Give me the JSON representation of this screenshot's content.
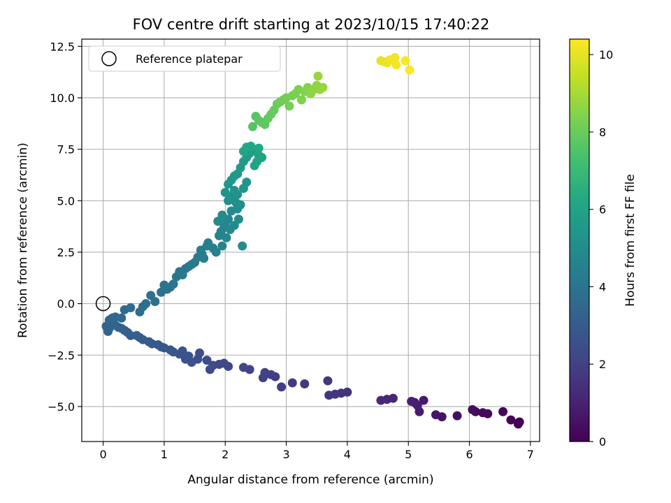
{
  "chart_data": {
    "type": "scatter",
    "title": "FOV centre drift starting at 2023/10/15 17:40:22",
    "xlabel": "Angular distance from reference (arcmin)",
    "ylabel": "Rotation from reference (arcmin)",
    "colorbar_label": "Hours from first FF file",
    "colormap": "viridis",
    "xlim": [
      -0.35,
      7.15
    ],
    "ylim": [
      -6.7,
      12.85
    ],
    "clim": [
      0,
      10.4
    ],
    "x_ticks": [
      0,
      1,
      2,
      3,
      4,
      5,
      6,
      7
    ],
    "y_ticks": [
      -5.0,
      -2.5,
      0.0,
      2.5,
      5.0,
      7.5,
      10.0,
      12.5
    ],
    "colorbar_ticks": [
      0,
      2,
      4,
      6,
      8,
      10
    ],
    "grid": true,
    "legend": {
      "placement": "top-left",
      "entries": [
        "Reference platepar"
      ]
    },
    "reference_point": {
      "x": 0,
      "y": 0
    },
    "points": [
      [
        6.82,
        -5.75,
        0.0
      ],
      [
        6.8,
        -5.85,
        0.05
      ],
      [
        6.68,
        -5.65,
        0.1
      ],
      [
        6.55,
        -5.25,
        0.15
      ],
      [
        6.3,
        -5.35,
        0.2
      ],
      [
        6.22,
        -5.3,
        0.25
      ],
      [
        6.1,
        -5.25,
        0.3
      ],
      [
        6.05,
        -5.15,
        0.35
      ],
      [
        5.8,
        -5.45,
        0.45
      ],
      [
        5.55,
        -5.5,
        0.55
      ],
      [
        5.45,
        -5.4,
        0.6
      ],
      [
        5.25,
        -4.7,
        0.75
      ],
      [
        5.18,
        -5.25,
        0.8
      ],
      [
        5.15,
        -4.95,
        0.85
      ],
      [
        5.1,
        -4.8,
        0.9
      ],
      [
        5.05,
        -4.75,
        0.95
      ],
      [
        4.75,
        -4.6,
        1.1
      ],
      [
        4.65,
        -4.65,
        1.15
      ],
      [
        4.55,
        -4.7,
        1.2
      ],
      [
        4.0,
        -4.3,
        1.45
      ],
      [
        3.9,
        -4.35,
        1.5
      ],
      [
        3.8,
        -4.4,
        1.55
      ],
      [
        3.7,
        -4.45,
        1.6
      ],
      [
        3.68,
        -3.75,
        1.62
      ],
      [
        3.3,
        -3.9,
        1.75
      ],
      [
        3.1,
        -3.85,
        1.8
      ],
      [
        2.92,
        -4.05,
        1.85
      ],
      [
        2.82,
        -3.55,
        1.9
      ],
      [
        2.75,
        -3.45,
        1.95
      ],
      [
        2.65,
        -3.35,
        2.0
      ],
      [
        2.62,
        -3.6,
        2.02
      ],
      [
        2.4,
        -3.2,
        2.1
      ],
      [
        2.3,
        -3.1,
        2.15
      ],
      [
        2.05,
        -3.05,
        2.2
      ],
      [
        1.98,
        -2.9,
        2.25
      ],
      [
        1.9,
        -2.95,
        2.3
      ],
      [
        1.8,
        -3.0,
        2.35
      ],
      [
        1.75,
        -3.2,
        2.38
      ],
      [
        1.7,
        -2.75,
        2.42
      ],
      [
        1.58,
        -2.4,
        2.5
      ],
      [
        1.55,
        -2.7,
        2.52
      ],
      [
        1.45,
        -2.85,
        2.55
      ],
      [
        1.4,
        -2.55,
        2.6
      ],
      [
        1.35,
        -2.7,
        2.62
      ],
      [
        1.3,
        -2.3,
        2.65
      ],
      [
        1.25,
        -2.45,
        2.68
      ],
      [
        1.15,
        -2.35,
        2.72
      ],
      [
        1.1,
        -2.25,
        2.75
      ],
      [
        1.0,
        -2.15,
        2.8
      ],
      [
        0.95,
        -2.1,
        2.83
      ],
      [
        0.9,
        -2.0,
        2.86
      ],
      [
        0.8,
        -1.95,
        2.9
      ],
      [
        0.75,
        -1.85,
        2.93
      ],
      [
        0.65,
        -1.75,
        2.96
      ],
      [
        0.6,
        -1.65,
        3.0
      ],
      [
        0.55,
        -1.55,
        3.03
      ],
      [
        0.45,
        -1.55,
        3.06
      ],
      [
        0.4,
        -1.4,
        3.1
      ],
      [
        0.35,
        -1.3,
        3.13
      ],
      [
        0.3,
        -1.2,
        3.16
      ],
      [
        0.25,
        -1.15,
        3.2
      ],
      [
        0.2,
        -1.05,
        3.23
      ],
      [
        0.15,
        -1.0,
        3.26
      ],
      [
        0.1,
        -1.2,
        3.3
      ],
      [
        0.08,
        -1.35,
        3.33
      ],
      [
        0.05,
        -1.1,
        3.36
      ],
      [
        0.1,
        -0.8,
        3.4
      ],
      [
        0.15,
        -0.7,
        3.45
      ],
      [
        0.2,
        -0.65,
        3.5
      ],
      [
        0.3,
        -0.7,
        3.55
      ],
      [
        0.35,
        -0.3,
        3.6
      ],
      [
        0.45,
        -0.2,
        3.65
      ],
      [
        0.6,
        -0.4,
        3.7
      ],
      [
        0.65,
        -0.15,
        3.75
      ],
      [
        0.7,
        0.0,
        3.78
      ],
      [
        0.78,
        0.4,
        3.82
      ],
      [
        0.85,
        0.1,
        3.85
      ],
      [
        0.95,
        0.55,
        3.9
      ],
      [
        1.0,
        0.9,
        3.93
      ],
      [
        1.05,
        0.7,
        3.96
      ],
      [
        1.1,
        0.8,
        4.0
      ],
      [
        1.15,
        0.95,
        4.03
      ],
      [
        1.2,
        1.3,
        4.06
      ],
      [
        1.25,
        1.55,
        4.1
      ],
      [
        1.3,
        1.4,
        4.13
      ],
      [
        1.35,
        1.7,
        4.16
      ],
      [
        1.4,
        1.8,
        4.2
      ],
      [
        1.45,
        1.9,
        4.23
      ],
      [
        1.5,
        2.0,
        4.26
      ],
      [
        1.55,
        2.25,
        4.3
      ],
      [
        1.6,
        2.6,
        4.33
      ],
      [
        1.62,
        2.4,
        4.36
      ],
      [
        1.65,
        2.2,
        4.4
      ],
      [
        1.7,
        2.8,
        4.43
      ],
      [
        1.72,
        2.95,
        4.46
      ],
      [
        1.8,
        2.7,
        4.5
      ],
      [
        1.85,
        2.5,
        4.55
      ],
      [
        1.9,
        3.3,
        4.6
      ],
      [
        1.93,
        3.5,
        4.63
      ],
      [
        1.95,
        2.8,
        4.66
      ],
      [
        1.98,
        3.7,
        4.7
      ],
      [
        2.0,
        3.9,
        4.73
      ],
      [
        2.02,
        3.2,
        4.76
      ],
      [
        2.05,
        4.1,
        4.8
      ],
      [
        2.08,
        3.6,
        4.83
      ],
      [
        2.1,
        4.5,
        4.86
      ],
      [
        1.88,
        4.0,
        4.9
      ],
      [
        1.95,
        4.3,
        4.93
      ],
      [
        2.15,
        3.8,
        4.96
      ],
      [
        2.2,
        4.6,
        5.0
      ],
      [
        2.22,
        4.1,
        5.03
      ],
      [
        2.28,
        2.8,
        5.05
      ],
      [
        2.18,
        4.9,
        5.1
      ],
      [
        2.25,
        4.8,
        5.13
      ],
      [
        2.05,
        5.0,
        5.16
      ],
      [
        2.1,
        5.2,
        5.2
      ],
      [
        2.0,
        5.4,
        5.23
      ],
      [
        2.15,
        5.5,
        5.26
      ],
      [
        2.2,
        5.3,
        5.3
      ],
      [
        2.3,
        5.6,
        5.35
      ],
      [
        2.35,
        5.9,
        5.4
      ],
      [
        2.05,
        5.8,
        5.43
      ],
      [
        2.1,
        6.0,
        5.46
      ],
      [
        2.15,
        6.2,
        5.5
      ],
      [
        2.2,
        6.3,
        5.55
      ],
      [
        2.25,
        6.6,
        5.6
      ],
      [
        2.3,
        6.9,
        5.65
      ],
      [
        2.35,
        7.1,
        5.7
      ],
      [
        2.4,
        7.3,
        5.75
      ],
      [
        2.45,
        7.5,
        5.8
      ],
      [
        2.5,
        7.4,
        5.85
      ],
      [
        2.55,
        7.2,
        5.9
      ],
      [
        2.52,
        6.9,
        5.95
      ],
      [
        2.6,
        7.1,
        6.0
      ],
      [
        2.48,
        6.7,
        6.05
      ],
      [
        2.3,
        7.4,
        6.1
      ],
      [
        2.35,
        7.6,
        6.15
      ],
      [
        2.42,
        7.65,
        6.2
      ],
      [
        2.55,
        7.55,
        6.25
      ],
      [
        2.45,
        8.6,
        7.6
      ],
      [
        2.5,
        9.1,
        7.65
      ],
      [
        2.55,
        8.9,
        7.7
      ],
      [
        2.6,
        8.8,
        7.75
      ],
      [
        2.65,
        8.7,
        7.8
      ],
      [
        2.7,
        9.0,
        7.85
      ],
      [
        2.75,
        9.2,
        7.9
      ],
      [
        2.8,
        9.4,
        7.95
      ],
      [
        2.85,
        9.7,
        8.0
      ],
      [
        2.9,
        9.8,
        8.05
      ],
      [
        2.95,
        9.9,
        8.1
      ],
      [
        3.0,
        10.0,
        8.15
      ],
      [
        3.05,
        9.6,
        8.2
      ],
      [
        3.1,
        10.1,
        8.25
      ],
      [
        3.15,
        10.2,
        8.3
      ],
      [
        3.2,
        10.4,
        8.35
      ],
      [
        3.25,
        9.9,
        8.4
      ],
      [
        3.3,
        10.3,
        8.45
      ],
      [
        3.35,
        10.5,
        8.5
      ],
      [
        3.4,
        10.2,
        8.55
      ],
      [
        3.45,
        10.4,
        8.6
      ],
      [
        3.5,
        10.6,
        8.65
      ],
      [
        3.55,
        10.4,
        8.7
      ],
      [
        3.6,
        10.5,
        8.75
      ],
      [
        3.52,
        11.05,
        8.8
      ],
      [
        4.55,
        11.8,
        10.0
      ],
      [
        4.6,
        11.75,
        10.05
      ],
      [
        4.65,
        11.7,
        10.1
      ],
      [
        4.7,
        11.85,
        10.15
      ],
      [
        4.78,
        11.95,
        10.2
      ],
      [
        4.8,
        11.6,
        10.25
      ],
      [
        4.95,
        11.8,
        10.3
      ],
      [
        5.02,
        11.35,
        10.35
      ]
    ]
  }
}
